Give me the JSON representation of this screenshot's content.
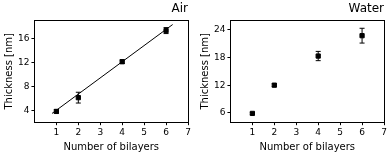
{
  "chart_data": [
    {
      "type": "scatter",
      "title": "Air",
      "x_label": "Number of bilayers",
      "y_label": "Thickness [nm]",
      "xlim": [
        0,
        7
      ],
      "xticks": [
        1,
        2,
        3,
        4,
        5,
        6,
        7
      ],
      "ylim": [
        2,
        19
      ],
      "yticks": [
        4,
        8,
        12,
        16
      ],
      "grid": false,
      "series": [
        {
          "type": "scatter",
          "marker": "square",
          "color": "#000000",
          "x": [
            1,
            2,
            4,
            6
          ],
          "values": [
            3.8,
            6.1,
            12.1,
            17.3
          ],
          "errors": [
            0.3,
            0.9,
            0.3,
            0.5
          ]
        },
        {
          "type": "line",
          "line_style": "solid",
          "color": "#000000",
          "x": [
            0.8,
            6.3
          ],
          "values": [
            3.46,
            18.31
          ]
        }
      ]
    },
    {
      "type": "scatter",
      "title": "Water",
      "x_label": "Number of bilayers",
      "y_label": "Thickness [nm]",
      "xlim": [
        0,
        7
      ],
      "xticks": [
        1,
        2,
        3,
        4,
        5,
        6,
        7
      ],
      "ylim": [
        4,
        26
      ],
      "yticks": [
        6,
        12,
        18,
        24
      ],
      "grid": false,
      "series": [
        {
          "type": "scatter",
          "marker": "square",
          "color": "#000000",
          "x": [
            1,
            2,
            4,
            6
          ],
          "values": [
            5.9,
            12.0,
            18.3,
            22.7
          ],
          "errors": [
            0.2,
            0.3,
            1.0,
            1.6
          ]
        }
      ]
    }
  ]
}
